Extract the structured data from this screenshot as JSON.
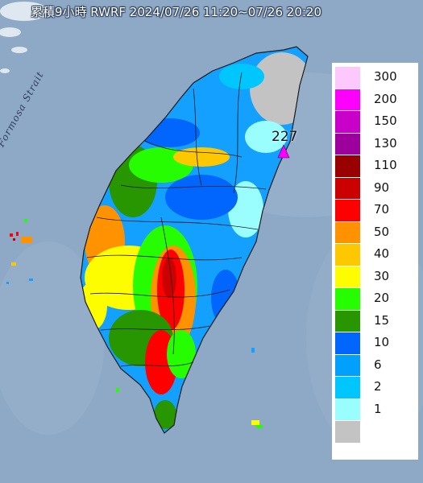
{
  "title": "累積9小時 RWRF 2024/07/26 11:20~07/26 20:20",
  "strait_label": "Formosa Strait",
  "max_value_label": "227",
  "legend": {
    "items": [
      {
        "label": "300",
        "color": "#fdc9fd"
      },
      {
        "label": "200",
        "color": "#fd00fd"
      },
      {
        "label": "150",
        "color": "#c900c9"
      },
      {
        "label": "130",
        "color": "#9e009e"
      },
      {
        "label": "110",
        "color": "#990000"
      },
      {
        "label": "90",
        "color": "#cd0000"
      },
      {
        "label": "70",
        "color": "#fe0000"
      },
      {
        "label": "50",
        "color": "#fe9200"
      },
      {
        "label": "40",
        "color": "#fec800"
      },
      {
        "label": "30",
        "color": "#fefd00"
      },
      {
        "label": "20",
        "color": "#26fd00"
      },
      {
        "label": "15",
        "color": "#279600"
      },
      {
        "label": "10",
        "color": "#0166fe"
      },
      {
        "label": "6",
        "color": "#01a0fe"
      },
      {
        "label": "2",
        "color": "#00c6fe"
      },
      {
        "label": "1",
        "color": "#9bfefe"
      },
      {
        "label": "",
        "color": "#c3c3c3"
      }
    ]
  },
  "colors": {
    "ocean": "#8ea9c6",
    "land_base": "#14a0fe",
    "boundary": "#1b1b1b",
    "max_marker": "#fd00fd"
  }
}
